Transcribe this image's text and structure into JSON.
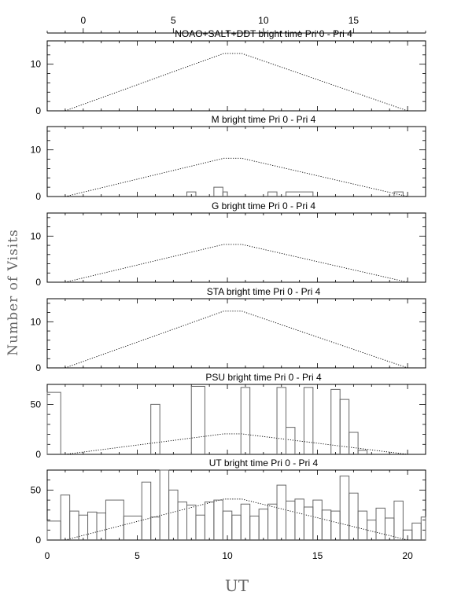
{
  "figure": {
    "ylabel": "Number of Visits",
    "xlabel": "UT",
    "top_axis_ticks": [
      "0",
      "5",
      "10",
      "15"
    ],
    "bottom_axis_ticks": [
      "0",
      "5",
      "10",
      "15",
      "20"
    ]
  },
  "chart_data": [
    {
      "type": "line",
      "title": "NOAO+SALT+DDT   bright time Pri 0 - Pri 4",
      "xlim": [
        0,
        21
      ],
      "ylim": [
        0,
        15
      ],
      "ytick_labels": [
        "0",
        "10"
      ],
      "ytick_values": [
        0,
        10
      ],
      "series": [
        {
          "x": [
            1,
            9.8,
            10.8,
            20
          ],
          "values": [
            0,
            12.3,
            12.3,
            0
          ]
        }
      ],
      "histogram": []
    },
    {
      "type": "line",
      "title": "M    bright time Pri 0 - Pri 4",
      "xlim": [
        0,
        21
      ],
      "ylim": [
        0,
        15
      ],
      "ytick_labels": [
        "0",
        "10"
      ],
      "ytick_values": [
        0,
        10
      ],
      "series": [
        {
          "x": [
            1,
            9.8,
            10.8,
            20
          ],
          "values": [
            0,
            8.2,
            8.2,
            0
          ]
        }
      ],
      "histogram": [
        {
          "x0": 7.75,
          "x1": 8.25,
          "value": 1
        },
        {
          "x0": 9.25,
          "x1": 9.75,
          "value": 2
        },
        {
          "x0": 9.75,
          "x1": 10.0,
          "value": 1
        },
        {
          "x0": 12.25,
          "x1": 12.75,
          "value": 1
        },
        {
          "x0": 13.25,
          "x1": 14.75,
          "value": 1
        },
        {
          "x0": 19.25,
          "x1": 19.75,
          "value": 1
        }
      ]
    },
    {
      "type": "line",
      "title": "G    bright time Pri 0 - Pri 4",
      "xlim": [
        0,
        21
      ],
      "ylim": [
        0,
        15
      ],
      "ytick_labels": [
        "0",
        "10"
      ],
      "ytick_values": [
        0,
        10
      ],
      "series": [
        {
          "x": [
            1,
            9.8,
            10.8,
            20
          ],
          "values": [
            0,
            8.2,
            8.2,
            0
          ]
        }
      ],
      "histogram": []
    },
    {
      "type": "line",
      "title": "STA    bright time Pri 0 - Pri 4",
      "xlim": [
        0,
        21
      ],
      "ylim": [
        0,
        15
      ],
      "ytick_labels": [
        "0",
        "10"
      ],
      "ytick_values": [
        0,
        10
      ],
      "series": [
        {
          "x": [
            1,
            9.8,
            10.8,
            20
          ],
          "values": [
            0,
            12.3,
            12.3,
            0
          ]
        }
      ],
      "histogram": []
    },
    {
      "type": "line",
      "title": "PSU    bright time Pri 0 - Pri 4",
      "xlim": [
        0,
        21
      ],
      "ylim": [
        0,
        70
      ],
      "ytick_labels": [
        "0",
        "50"
      ],
      "ytick_values": [
        0,
        50
      ],
      "series": [
        {
          "x": [
            1,
            9.8,
            10.8,
            20
          ],
          "values": [
            0,
            20.5,
            20.5,
            0
          ]
        }
      ],
      "histogram": [
        {
          "x0": 0,
          "x1": 0.75,
          "value": 62
        },
        {
          "x0": 5.75,
          "x1": 6.25,
          "value": 50
        },
        {
          "x0": 8.0,
          "x1": 8.75,
          "value": 68
        },
        {
          "x0": 10.75,
          "x1": 11.25,
          "value": 67
        },
        {
          "x0": 12.75,
          "x1": 13.25,
          "value": 67
        },
        {
          "x0": 13.25,
          "x1": 13.75,
          "value": 27
        },
        {
          "x0": 14.25,
          "x1": 14.75,
          "value": 67
        },
        {
          "x0": 15.75,
          "x1": 16.25,
          "value": 65
        },
        {
          "x0": 16.25,
          "x1": 16.75,
          "value": 55
        },
        {
          "x0": 16.75,
          "x1": 17.25,
          "value": 22
        },
        {
          "x0": 17.25,
          "x1": 17.75,
          "value": 4
        }
      ]
    },
    {
      "type": "line",
      "title": "UT    bright time Pri 0 - Pri 4",
      "xlim": [
        0,
        21
      ],
      "ylim": [
        0,
        70
      ],
      "ytick_labels": [
        "0",
        "50"
      ],
      "ytick_values": [
        0,
        50
      ],
      "series": [
        {
          "x": [
            1,
            9.8,
            10.8,
            20
          ],
          "values": [
            0,
            41,
            41,
            0
          ]
        }
      ],
      "histogram": [
        {
          "x0": 0.0,
          "x1": 0.75,
          "value": 19
        },
        {
          "x0": 0.75,
          "x1": 1.25,
          "value": 45
        },
        {
          "x0": 1.25,
          "x1": 1.75,
          "value": 29
        },
        {
          "x0": 1.75,
          "x1": 2.25,
          "value": 25
        },
        {
          "x0": 2.25,
          "x1": 2.75,
          "value": 28
        },
        {
          "x0": 2.75,
          "x1": 3.25,
          "value": 27
        },
        {
          "x0": 3.25,
          "x1": 4.25,
          "value": 40
        },
        {
          "x0": 4.25,
          "x1": 5.25,
          "value": 24
        },
        {
          "x0": 5.25,
          "x1": 5.75,
          "value": 58
        },
        {
          "x0": 5.75,
          "x1": 6.25,
          "value": 23
        },
        {
          "x0": 6.25,
          "x1": 6.75,
          "value": 70
        },
        {
          "x0": 6.75,
          "x1": 7.25,
          "value": 50
        },
        {
          "x0": 7.25,
          "x1": 7.75,
          "value": 38
        },
        {
          "x0": 7.75,
          "x1": 8.25,
          "value": 35
        },
        {
          "x0": 8.25,
          "x1": 8.75,
          "value": 25
        },
        {
          "x0": 8.75,
          "x1": 9.25,
          "value": 38
        },
        {
          "x0": 9.25,
          "x1": 9.75,
          "value": 40
        },
        {
          "x0": 9.75,
          "x1": 10.25,
          "value": 29
        },
        {
          "x0": 10.25,
          "x1": 10.75,
          "value": 25
        },
        {
          "x0": 10.75,
          "x1": 11.25,
          "value": 36
        },
        {
          "x0": 11.25,
          "x1": 11.75,
          "value": 24
        },
        {
          "x0": 11.75,
          "x1": 12.25,
          "value": 31
        },
        {
          "x0": 12.25,
          "x1": 12.75,
          "value": 36
        },
        {
          "x0": 12.75,
          "x1": 13.25,
          "value": 55
        },
        {
          "x0": 13.25,
          "x1": 13.75,
          "value": 39
        },
        {
          "x0": 13.75,
          "x1": 14.25,
          "value": 41
        },
        {
          "x0": 14.25,
          "x1": 14.75,
          "value": 33
        },
        {
          "x0": 14.75,
          "x1": 15.25,
          "value": 40
        },
        {
          "x0": 15.25,
          "x1": 15.75,
          "value": 30
        },
        {
          "x0": 15.75,
          "x1": 16.25,
          "value": 29
        },
        {
          "x0": 16.25,
          "x1": 16.75,
          "value": 64
        },
        {
          "x0": 16.75,
          "x1": 17.25,
          "value": 47
        },
        {
          "x0": 17.25,
          "x1": 17.75,
          "value": 29
        },
        {
          "x0": 17.75,
          "x1": 18.25,
          "value": 20
        },
        {
          "x0": 18.25,
          "x1": 18.75,
          "value": 32
        },
        {
          "x0": 18.75,
          "x1": 19.25,
          "value": 22
        },
        {
          "x0": 19.25,
          "x1": 19.75,
          "value": 39
        },
        {
          "x0": 19.75,
          "x1": 20.25,
          "value": 10
        },
        {
          "x0": 20.25,
          "x1": 20.75,
          "value": 17
        },
        {
          "x0": 20.75,
          "x1": 21.0,
          "value": 23
        }
      ]
    }
  ]
}
